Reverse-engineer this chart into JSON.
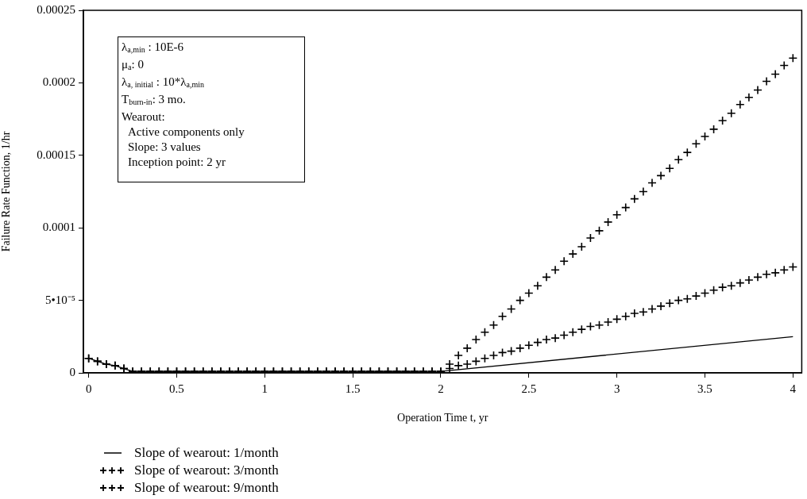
{
  "chart_data": {
    "type": "line",
    "xlabel": "Operation Time t, yr",
    "ylabel": "Failure Rate Function, 1/hr",
    "x": [
      0,
      0.05,
      0.1,
      0.15,
      0.2,
      0.25,
      0.3,
      0.35,
      0.4,
      0.45,
      0.5,
      0.55,
      0.6,
      0.65,
      0.7,
      0.75,
      0.8,
      0.85,
      0.9,
      0.95,
      1,
      1.05,
      1.1,
      1.15,
      1.2,
      1.25,
      1.3,
      1.35,
      1.4,
      1.45,
      1.5,
      1.55,
      1.6,
      1.65,
      1.7,
      1.75,
      1.8,
      1.85,
      1.9,
      1.95,
      2,
      2.05,
      2.1,
      2.15,
      2.2,
      2.25,
      2.3,
      2.35,
      2.4,
      2.45,
      2.5,
      2.55,
      2.6,
      2.65,
      2.7,
      2.75,
      2.8,
      2.85,
      2.9,
      2.95,
      3,
      3.05,
      3.1,
      3.15,
      3.2,
      3.25,
      3.3,
      3.35,
      3.4,
      3.45,
      3.5,
      3.55,
      3.6,
      3.65,
      3.7,
      3.75,
      3.8,
      3.85,
      3.9,
      3.95,
      4
    ],
    "series": [
      {
        "name": "Slope of wearout: 1/month",
        "color": "#000000",
        "marker": "none",
        "x": [
          0,
          0.05,
          0.1,
          0.15,
          0.2,
          0.25,
          2,
          4
        ],
        "values": [
          1e-05,
          8e-06,
          6e-06,
          5e-06,
          3e-06,
          1e-06,
          1e-06,
          2.5e-05
        ]
      },
      {
        "name": "Slope of wearout: 3/month",
        "type": "scatter",
        "color": "#000000",
        "marker": "cross",
        "values": [
          1e-05,
          8e-06,
          6e-06,
          5e-06,
          3e-06,
          1e-06,
          1e-06,
          1e-06,
          1e-06,
          1e-06,
          1e-06,
          1e-06,
          1e-06,
          1e-06,
          1e-06,
          1e-06,
          1e-06,
          1e-06,
          1e-06,
          1e-06,
          1e-06,
          1e-06,
          1e-06,
          1e-06,
          1e-06,
          1e-06,
          1e-06,
          1e-06,
          1e-06,
          1e-06,
          1e-06,
          1e-06,
          1e-06,
          1e-06,
          1e-06,
          1e-06,
          1e-06,
          1e-06,
          1e-06,
          1e-06,
          1e-06,
          3e-06,
          5e-06,
          6e-06,
          8e-06,
          1e-05,
          1.2e-05,
          1.4e-05,
          1.5e-05,
          1.7e-05,
          1.9e-05,
          2.1e-05,
          2.3e-05,
          2.4e-05,
          2.6e-05,
          2.8e-05,
          3e-05,
          3.2e-05,
          3.3e-05,
          3.5e-05,
          3.7e-05,
          3.9e-05,
          4.1e-05,
          4.2e-05,
          4.4e-05,
          4.6e-05,
          4.8e-05,
          5e-05,
          5.1e-05,
          5.3e-05,
          5.5e-05,
          5.7e-05,
          5.9e-05,
          6e-05,
          6.2e-05,
          6.4e-05,
          6.6e-05,
          6.8e-05,
          6.9e-05,
          7.1e-05,
          7.3e-05
        ]
      },
      {
        "name": "Slope of wearout: 9/month",
        "type": "scatter",
        "color": "#000000",
        "marker": "cross",
        "values": [
          1e-05,
          8e-06,
          6e-06,
          5e-06,
          3e-06,
          1e-06,
          1e-06,
          1e-06,
          1e-06,
          1e-06,
          1e-06,
          1e-06,
          1e-06,
          1e-06,
          1e-06,
          1e-06,
          1e-06,
          1e-06,
          1e-06,
          1e-06,
          1e-06,
          1e-06,
          1e-06,
          1e-06,
          1e-06,
          1e-06,
          1e-06,
          1e-06,
          1e-06,
          1e-06,
          1e-06,
          1e-06,
          1e-06,
          1e-06,
          1e-06,
          1e-06,
          1e-06,
          1e-06,
          1e-06,
          1e-06,
          1e-06,
          6e-06,
          1.2e-05,
          1.7e-05,
          2.3e-05,
          2.8e-05,
          3.3e-05,
          3.9e-05,
          4.4e-05,
          5e-05,
          5.5e-05,
          6e-05,
          6.6e-05,
          7.1e-05,
          7.7e-05,
          8.2e-05,
          8.7e-05,
          9.3e-05,
          9.8e-05,
          0.000104,
          0.000109,
          0.000114,
          0.00012,
          0.000125,
          0.000131,
          0.000136,
          0.000141,
          0.000147,
          0.000152,
          0.000158,
          0.000163,
          0.000168,
          0.000174,
          0.000179,
          0.000185,
          0.00019,
          0.000195,
          0.000201,
          0.000206,
          0.000212,
          0.000217
        ]
      }
    ],
    "xlim": [
      -0.03,
      4.05
    ],
    "xticks": [
      0,
      0.5,
      1,
      1.5,
      2,
      2.5,
      3,
      3.5,
      4
    ],
    "ylim": [
      0,
      0.00025
    ],
    "yticks": [
      0,
      {
        "value": 5e-05,
        "label": "5•10⁻⁵"
      },
      0.0001,
      0.00015,
      0.0002,
      0.00025
    ],
    "grid": false,
    "legend": "bottom left",
    "annotations": [
      "λ$_{a,min}$ : 10E-6",
      "μ$_{a}$: 0",
      "λ$_{a, initial}$ : 10*λ$_{a,min}$",
      "T$_{burn-in}$: 3 mo.",
      "Wearout:",
      "Active components only",
      "Slope: 3 values",
      "Inception point: 2 yr"
    ]
  }
}
